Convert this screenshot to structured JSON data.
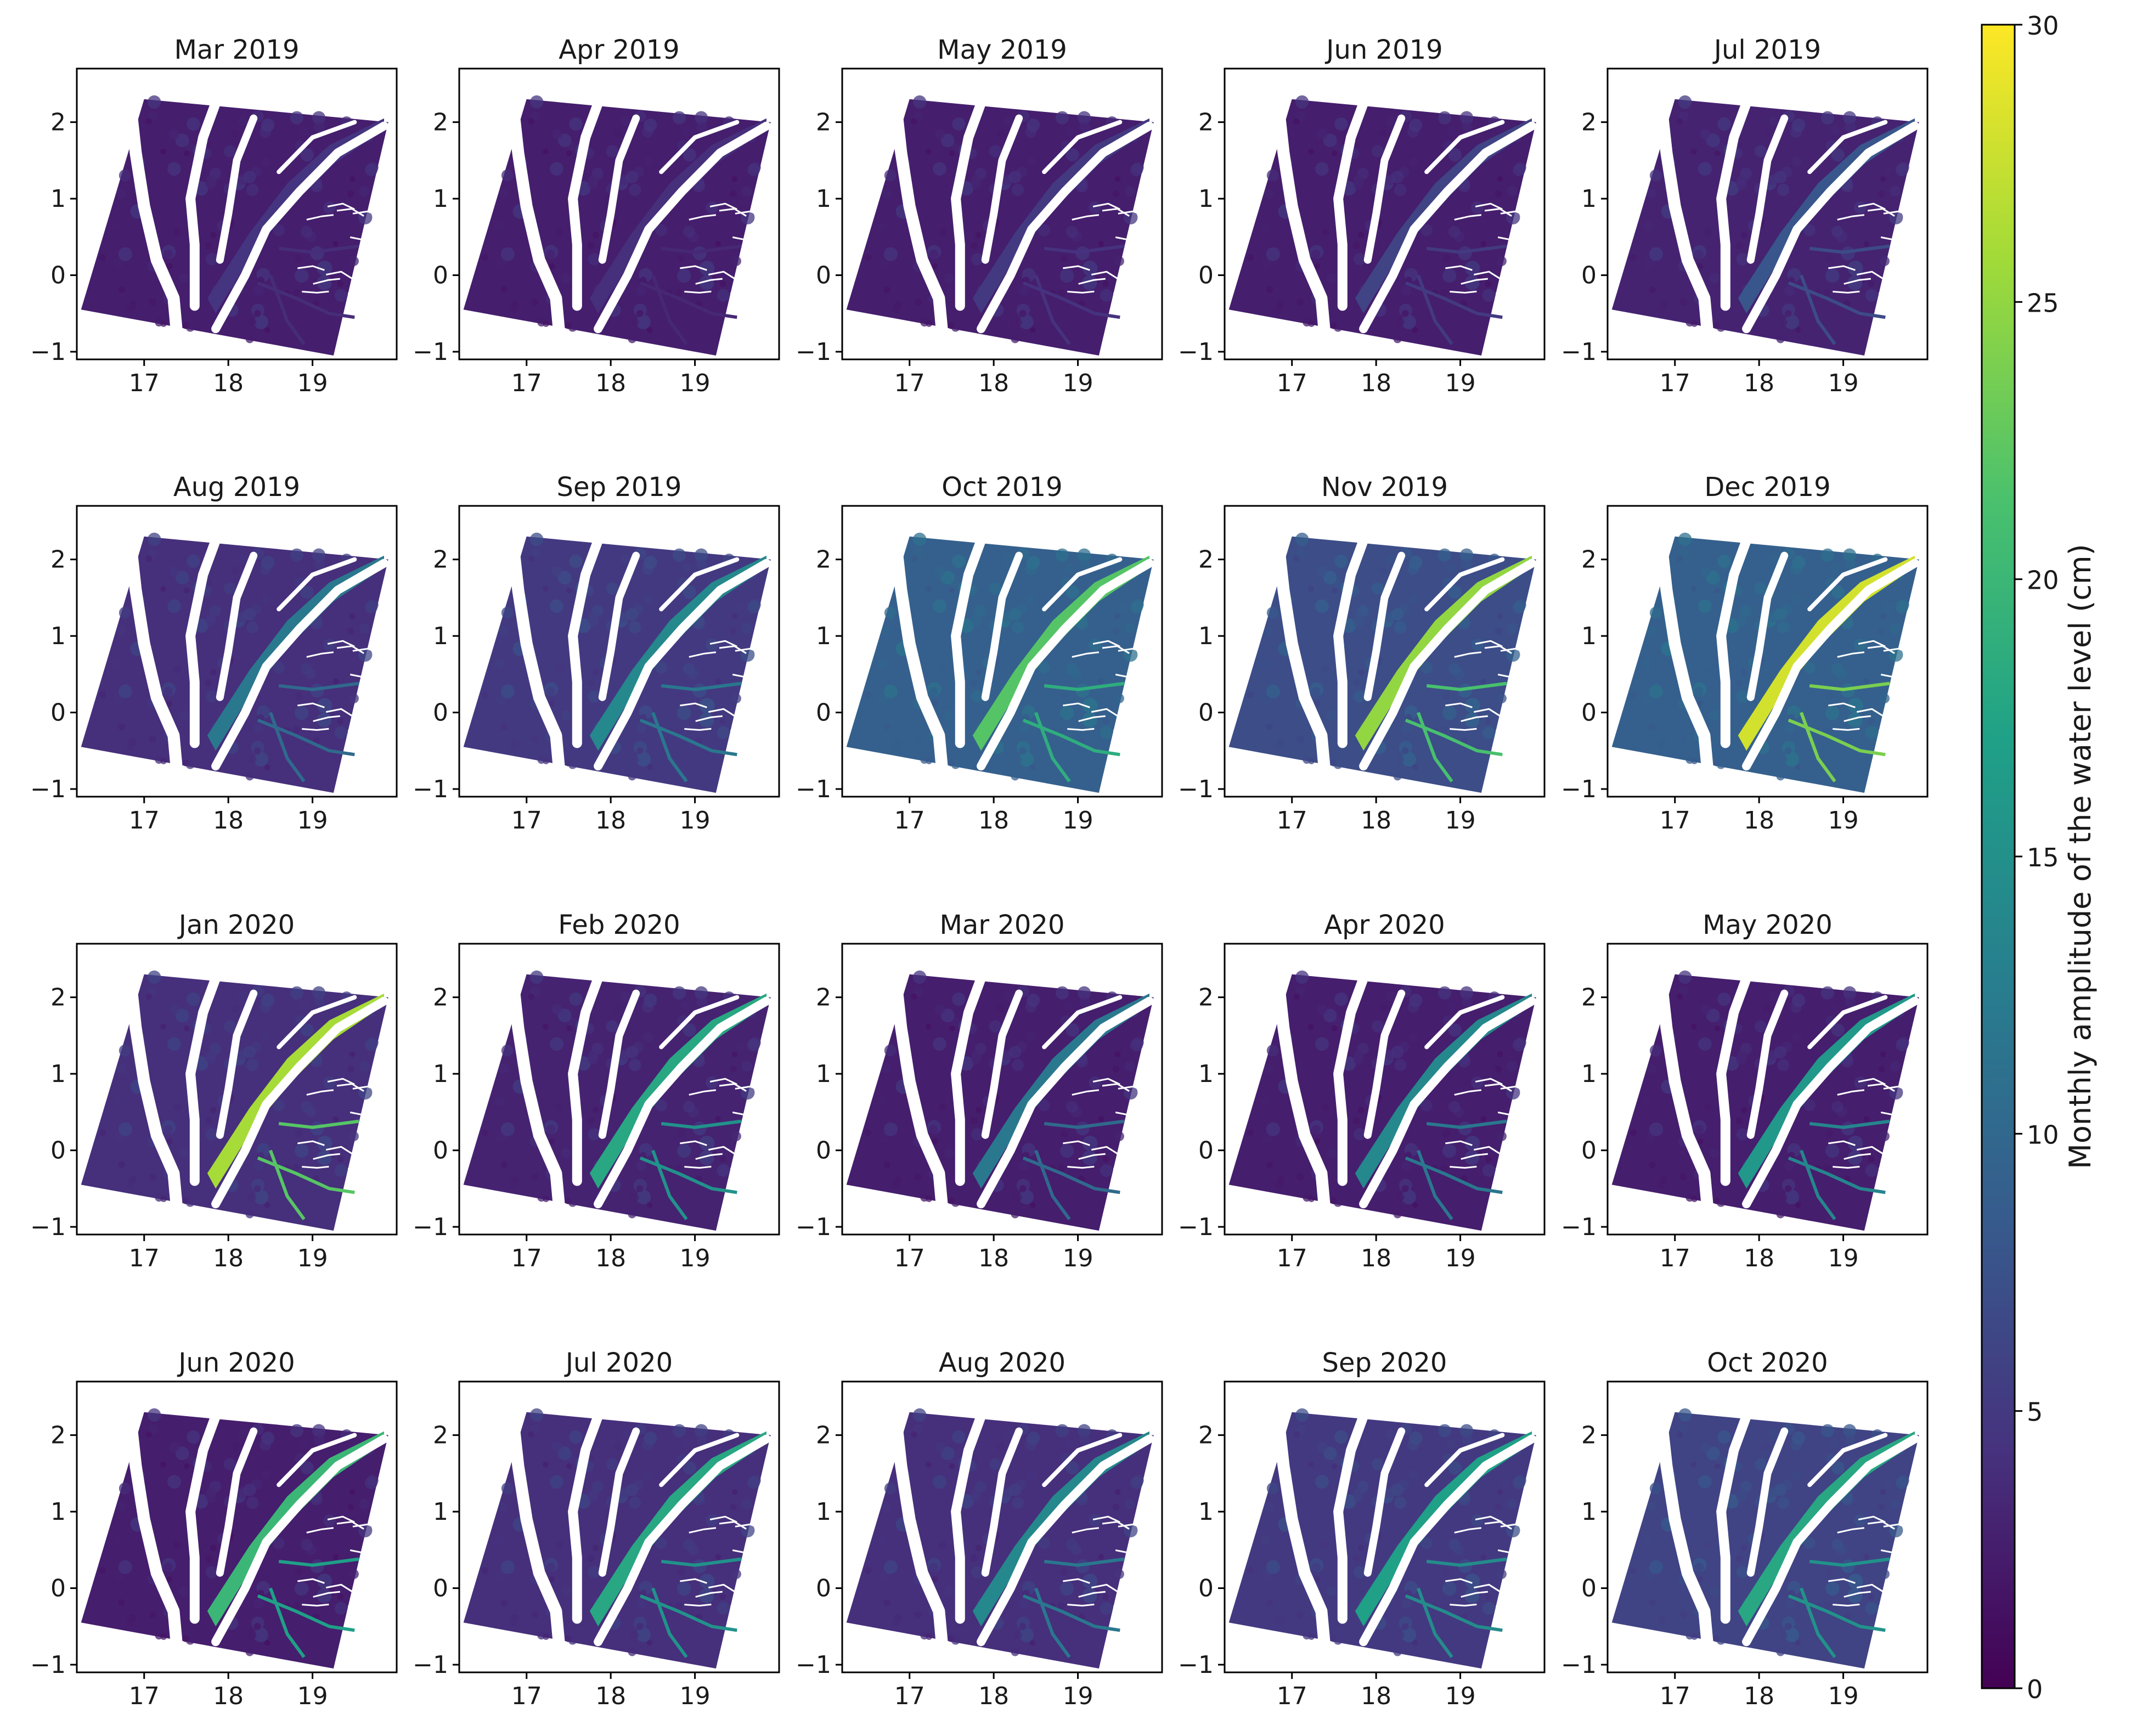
{
  "figure": {
    "colorbar_label": "Monthly amplitude of the water level (cm)"
  },
  "chart_data": {
    "type": "heatmap",
    "colormap": "viridis",
    "colormap_stops": [
      "#440154",
      "#46327e",
      "#365c8d",
      "#277f8e",
      "#1fa187",
      "#4ac16d",
      "#a0da39",
      "#fde725"
    ],
    "nodata_color": "#ffffff",
    "colorbar": {
      "label": "Monthly amplitude of the water level (cm)",
      "range": [
        0,
        30
      ],
      "ticks": [
        0,
        5,
        10,
        15,
        20,
        25,
        30
      ],
      "tick_labels": [
        "0",
        "5",
        "10",
        "15",
        "20",
        "25",
        "30"
      ]
    },
    "xlim": [
      16.2,
      20.0
    ],
    "ylim": [
      -1.1,
      2.7
    ],
    "xticks": [
      17,
      18,
      19
    ],
    "xtick_labels": [
      "17",
      "18",
      "19"
    ],
    "yticks": [
      -1,
      0,
      1,
      2
    ],
    "ytick_labels": [
      "−1",
      "0",
      "1",
      "2"
    ],
    "panels": [
      {
        "title": "Mar 2019",
        "background_level_cm": 2.5,
        "floodplain_level_cm": 4.5
      },
      {
        "title": "Apr 2019",
        "background_level_cm": 2.5,
        "floodplain_level_cm": 4
      },
      {
        "title": "May 2019",
        "background_level_cm": 2.5,
        "floodplain_level_cm": 5
      },
      {
        "title": "Jun 2019",
        "background_level_cm": 2.5,
        "floodplain_level_cm": 6
      },
      {
        "title": "Jul 2019",
        "background_level_cm": 3,
        "floodplain_level_cm": 8
      },
      {
        "title": "Aug 2019",
        "background_level_cm": 4,
        "floodplain_level_cm": 12
      },
      {
        "title": "Sep 2019",
        "background_level_cm": 5,
        "floodplain_level_cm": 14
      },
      {
        "title": "Oct 2019",
        "background_level_cm": 9,
        "floodplain_level_cm": 22
      },
      {
        "title": "Nov 2019",
        "background_level_cm": 7,
        "floodplain_level_cm": 25
      },
      {
        "title": "Dec 2019",
        "background_level_cm": 9,
        "floodplain_level_cm": 28
      },
      {
        "title": "Jan 2020",
        "background_level_cm": 4,
        "floodplain_level_cm": 26
      },
      {
        "title": "Feb 2020",
        "background_level_cm": 3,
        "floodplain_level_cm": 18
      },
      {
        "title": "Mar 2020",
        "background_level_cm": 2.5,
        "floodplain_level_cm": 12
      },
      {
        "title": "Apr 2020",
        "background_level_cm": 2.5,
        "floodplain_level_cm": 14
      },
      {
        "title": "May 2020",
        "background_level_cm": 2.5,
        "floodplain_level_cm": 16
      },
      {
        "title": "Jun 2020",
        "background_level_cm": 2.5,
        "floodplain_level_cm": 20
      },
      {
        "title": "Jul 2020",
        "background_level_cm": 4,
        "floodplain_level_cm": 18
      },
      {
        "title": "Aug 2020",
        "background_level_cm": 4,
        "floodplain_level_cm": 14
      },
      {
        "title": "Sep 2020",
        "background_level_cm": 5,
        "floodplain_level_cm": 17
      },
      {
        "title": "Oct 2020",
        "background_level_cm": 6,
        "floodplain_level_cm": 18
      }
    ]
  }
}
